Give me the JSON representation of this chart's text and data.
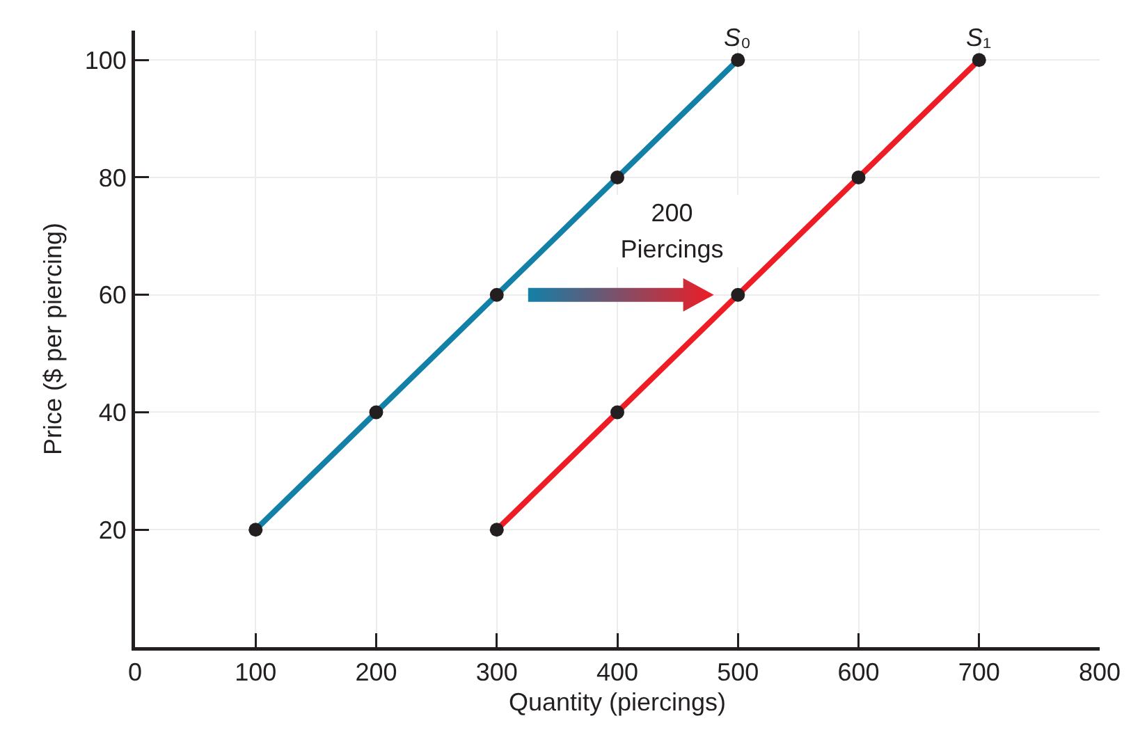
{
  "chart_data": {
    "type": "line",
    "xlabel": "Quantity (piercings)",
    "ylabel": "Price ($ per piercing)",
    "series": [
      {
        "name": "S₀",
        "color": "#1380a8",
        "x": [
          100,
          200,
          300,
          400,
          500
        ],
        "values": [
          20,
          40,
          60,
          80,
          100
        ]
      },
      {
        "name": "S₁",
        "color": "#ee1c25",
        "x": [
          300,
          400,
          500,
          600,
          700
        ],
        "values": [
          20,
          40,
          60,
          80,
          100
        ]
      }
    ],
    "xlim": [
      0,
      800
    ],
    "xticks": [
      0,
      100,
      200,
      300,
      400,
      500,
      600,
      700,
      800
    ],
    "ylim": [
      0,
      105
    ],
    "yticks": [
      {
        "value": 0,
        "label": null
      },
      20,
      40,
      60,
      80,
      100
    ],
    "grid": true,
    "marker": "circle",
    "line_style": "solid",
    "annotations": [
      "200 Piercings"
    ]
  }
}
